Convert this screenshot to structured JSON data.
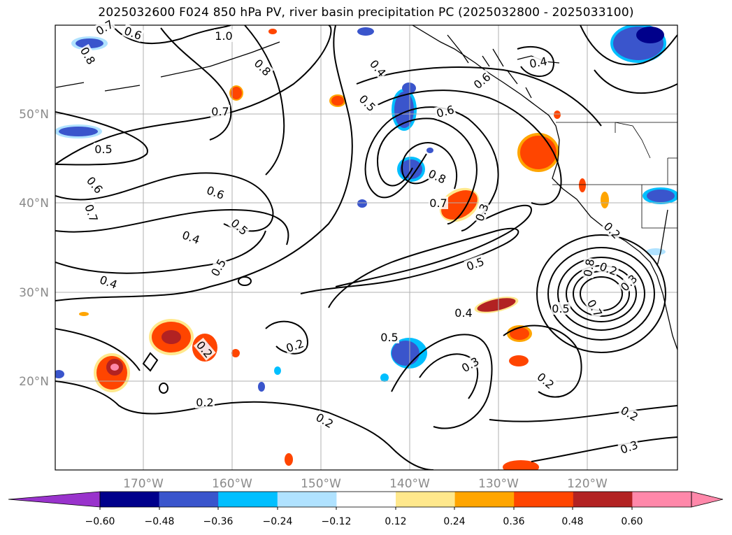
{
  "title": "2025032600 F024 850 hPa PV, river basin precipitation PC (2025032800 - 2025033100)",
  "map": {
    "lon_labels": [
      "170°W",
      "160°W",
      "150°W",
      "140°W",
      "130°W",
      "120°W"
    ],
    "lat_labels": [
      "50°N",
      "40°N",
      "30°N",
      "20°N"
    ],
    "contour_labels": [
      "0.7",
      "0.6",
      "0.8",
      "1.0",
      "0.8",
      "0.4",
      "0.6",
      "0.4",
      "0.6",
      "0.5",
      "0.7",
      "0.5",
      "0.6",
      "0.7",
      "0.6",
      "0.5",
      "0.4",
      "0.5",
      "0.8",
      "0.7",
      "0.3",
      "0.4",
      "0.5",
      "0.4",
      "0.5",
      "0.8",
      "0.7",
      "0.2",
      "0.3",
      "0.5",
      "0.2",
      "0.2",
      "0.2",
      "0.2",
      "0.3",
      "0.2",
      "0.2",
      "0.3",
      "0.2"
    ]
  },
  "colorbar": {
    "ticks": [
      "−0.60",
      "−0.48",
      "−0.36",
      "−0.24",
      "−0.12",
      "0.12",
      "0.24",
      "0.36",
      "0.48",
      "0.60"
    ],
    "colors": [
      "#9933cc",
      "#00008b",
      "#3a55cc",
      "#00bfff",
      "#b0e2ff",
      "#ffffff",
      "#ffe88c",
      "#ffa500",
      "#ff4500",
      "#b22222",
      "#ff88aa",
      "#ff88aa"
    ]
  }
}
